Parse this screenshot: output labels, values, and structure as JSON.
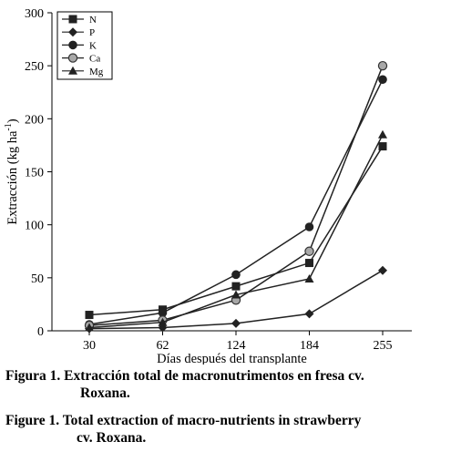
{
  "chart_data": {
    "type": "line",
    "ylabel": "Extracción (kg ha",
    "ylabel_sup": "-1",
    "ylabel_close": ")",
    "xlabel": "Días después del transplante",
    "categories": [
      "30",
      "62",
      "124",
      "184",
      "255"
    ],
    "ylim": [
      0,
      300
    ],
    "yticks": [
      "0",
      "50",
      "100",
      "150",
      "200",
      "250",
      "300"
    ],
    "grid": false,
    "legend_position": "top-left",
    "series": [
      {
        "name": "N",
        "marker": "square",
        "values": [
          15,
          20,
          42,
          64,
          174
        ]
      },
      {
        "name": "P",
        "marker": "diamond",
        "values": [
          2,
          3,
          7,
          16,
          57
        ]
      },
      {
        "name": "K",
        "marker": "circle",
        "values": [
          6,
          17,
          53,
          98,
          237
        ]
      },
      {
        "name": "Ca",
        "marker": "circle-gray",
        "values": [
          5,
          10,
          29,
          75,
          250
        ]
      },
      {
        "name": "Mg",
        "marker": "triangle",
        "values": [
          3,
          8,
          34,
          49,
          185
        ]
      }
    ]
  },
  "caption": {
    "es_label": "Figura 1.",
    "es_line1": "Extracción total de macronutrimentos en fresa cv.",
    "es_line2": "Roxana.",
    "en_label": "Figure 1.",
    "en_line1": "Total extraction of macro-nutrients in strawberry",
    "en_line2": "cv. Roxana."
  }
}
